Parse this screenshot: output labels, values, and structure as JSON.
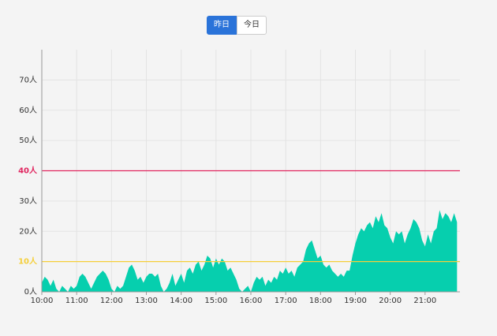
{
  "buttons": [
    "昨日",
    "今日"
  ],
  "active_button": 0,
  "chart_data": {
    "type": "area",
    "color": "#06cfae",
    "grid": true,
    "ylim": [
      0,
      80
    ],
    "yticks": [
      {
        "value": 0,
        "label": "0人"
      },
      {
        "value": 10,
        "label": "10人"
      },
      {
        "value": 20,
        "label": "20人"
      },
      {
        "value": 30,
        "label": "30人"
      },
      {
        "value": 40,
        "label": "40人"
      },
      {
        "value": 50,
        "label": "50人"
      },
      {
        "value": 60,
        "label": "60人"
      },
      {
        "value": 70,
        "label": "70人"
      }
    ],
    "thresholds": [
      {
        "value": 40,
        "color": "#e0245e"
      },
      {
        "value": 10,
        "color": "#f5cf3a"
      }
    ],
    "xlim": [
      "10:00",
      "22:00"
    ],
    "xticks": [
      "10:00",
      "11:00",
      "12:00",
      "13:00",
      "14:00",
      "15:00",
      "16:00",
      "17:00",
      "18:00",
      "19:00",
      "20:00",
      "21:00"
    ],
    "x": [
      "10:00",
      "10:05",
      "10:10",
      "10:15",
      "10:20",
      "10:25",
      "10:30",
      "10:35",
      "10:40",
      "10:45",
      "10:50",
      "10:55",
      "11:00",
      "11:05",
      "11:10",
      "11:15",
      "11:20",
      "11:25",
      "11:30",
      "11:35",
      "11:40",
      "11:45",
      "11:50",
      "11:55",
      "12:00",
      "12:05",
      "12:10",
      "12:15",
      "12:20",
      "12:25",
      "12:30",
      "12:35",
      "12:40",
      "12:45",
      "12:50",
      "12:55",
      "13:00",
      "13:05",
      "13:10",
      "13:15",
      "13:20",
      "13:25",
      "13:30",
      "13:35",
      "13:40",
      "13:45",
      "13:50",
      "13:55",
      "14:00",
      "14:05",
      "14:10",
      "14:15",
      "14:20",
      "14:25",
      "14:30",
      "14:35",
      "14:40",
      "14:45",
      "14:50",
      "14:55",
      "15:00",
      "15:05",
      "15:10",
      "15:15",
      "15:20",
      "15:25",
      "15:30",
      "15:35",
      "15:40",
      "15:45",
      "15:50",
      "15:55",
      "16:00",
      "16:05",
      "16:10",
      "16:15",
      "16:20",
      "16:25",
      "16:30",
      "16:35",
      "16:40",
      "16:45",
      "16:50",
      "16:55",
      "17:00",
      "17:05",
      "17:10",
      "17:15",
      "17:20",
      "17:25",
      "17:30",
      "17:35",
      "17:40",
      "17:45",
      "17:50",
      "17:55",
      "18:00",
      "18:05",
      "18:10",
      "18:15",
      "18:20",
      "18:25",
      "18:30",
      "18:35",
      "18:40",
      "18:45",
      "18:50",
      "18:55",
      "19:00",
      "19:05",
      "19:10",
      "19:15",
      "19:20",
      "19:25",
      "19:30",
      "19:35",
      "19:40",
      "19:45",
      "19:50",
      "19:55",
      "20:00",
      "20:05",
      "20:10",
      "20:15",
      "20:20",
      "20:25",
      "20:30",
      "20:35",
      "20:40",
      "20:45",
      "20:50",
      "20:55",
      "21:00",
      "21:05",
      "21:10",
      "21:15",
      "21:20",
      "21:25",
      "21:30",
      "21:35",
      "21:40",
      "21:45",
      "21:50",
      "21:55"
    ],
    "values": [
      3,
      5,
      4,
      2,
      4,
      1,
      0,
      2,
      1,
      0,
      2,
      1,
      2,
      5,
      6,
      5,
      3,
      1,
      3,
      5,
      6,
      7,
      6,
      4,
      1,
      0,
      2,
      1,
      2,
      5,
      8,
      9,
      7,
      4,
      5,
      3,
      5,
      6,
      6,
      5,
      6,
      2,
      0,
      1,
      3,
      6,
      2,
      4,
      6,
      3,
      7,
      8,
      6,
      9,
      10,
      7,
      9,
      12,
      11,
      8,
      11,
      9,
      11,
      10,
      7,
      8,
      6,
      4,
      1,
      0,
      1,
      2,
      0,
      3,
      5,
      4,
      5,
      2,
      4,
      3,
      5,
      4,
      7,
      6,
      8,
      6,
      7,
      5,
      8,
      9,
      10,
      14,
      16,
      17,
      14,
      11,
      12,
      9,
      8,
      9,
      7,
      6,
      5,
      6,
      5,
      7,
      7,
      12,
      16,
      19,
      21,
      20,
      22,
      23,
      21,
      25,
      23,
      26,
      22,
      21,
      18,
      16,
      20,
      19,
      20,
      16,
      19,
      21,
      24,
      23,
      21,
      17,
      15,
      19,
      16,
      20,
      21,
      27,
      24,
      26,
      25,
      23,
      26,
      23
    ]
  }
}
